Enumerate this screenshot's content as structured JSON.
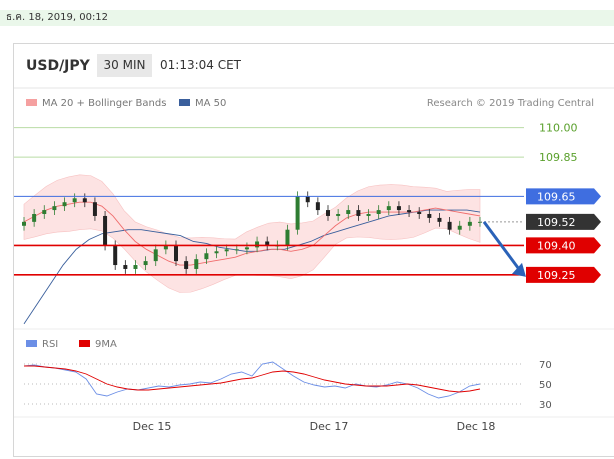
{
  "date_bar": "ธ.ค. 18, 2019, 00:12",
  "header": {
    "symbol": "USD/JPY",
    "timeframe": "30 MIN",
    "time": "01:13:04 CET"
  },
  "legend": {
    "ma20": "MA 20 + Bollinger Bands",
    "ma50": "MA 50",
    "source": "Research © 2019 Trading Central"
  },
  "rsi_legend": {
    "rsi": "RSI",
    "ma": "9MA"
  },
  "colors": {
    "up": "#2e7d32",
    "down": "#222222",
    "ma20": "#f06d6d",
    "ma50": "#3a5f9c",
    "band": "#fde3e3",
    "resistance": "#3f6ee0",
    "support": "#e00000",
    "target": "#5aa02c",
    "arrow": "#2a62b8"
  },
  "chart_data": [
    {
      "type": "line",
      "title": "",
      "ylim": [
        109.02,
        110.1
      ],
      "x_ticks": [
        "Dec 15",
        "Dec 17",
        "Dec 18"
      ],
      "levels": [
        {
          "value": 110.0,
          "label": "110.00",
          "kind": "target"
        },
        {
          "value": 109.85,
          "label": "109.85",
          "kind": "target"
        },
        {
          "value": 109.65,
          "label": "109.65",
          "kind": "resistance"
        },
        {
          "value": 109.52,
          "label": "109.52",
          "kind": "current"
        },
        {
          "value": 109.4,
          "label": "109.40",
          "kind": "support"
        },
        {
          "value": 109.25,
          "label": "109.25",
          "kind": "support"
        }
      ],
      "series": [
        {
          "name": "MA 20 + Bollinger Bands",
          "values": [
            109.52,
            109.55,
            109.58,
            109.6,
            109.61,
            109.62,
            109.62,
            109.6,
            109.55,
            109.48,
            109.42,
            109.38,
            109.35,
            109.32,
            109.3,
            109.3,
            109.31,
            109.32,
            109.33,
            109.34,
            109.36,
            109.37,
            109.38,
            109.38,
            109.37,
            109.38,
            109.4,
            109.45,
            109.5,
            109.54,
            109.56,
            109.57,
            109.57,
            109.57,
            109.57,
            109.57,
            109.58,
            109.59,
            109.58,
            109.57,
            109.56,
            109.55
          ]
        },
        {
          "name": "MA 50",
          "values": [
            109.0,
            109.1,
            109.2,
            109.3,
            109.38,
            109.43,
            109.46,
            109.47,
            109.48,
            109.48,
            109.47,
            109.46,
            109.45,
            109.42,
            109.41,
            109.39,
            109.38,
            109.37,
            109.37,
            109.38,
            109.38,
            109.4,
            109.42,
            109.45,
            109.47,
            109.49,
            109.51,
            109.53,
            109.55,
            109.56,
            109.57,
            109.58,
            109.58,
            109.58,
            109.58,
            109.57
          ]
        },
        {
          "name": "Price",
          "values": [
            109.52,
            109.56,
            109.58,
            109.6,
            109.62,
            109.64,
            109.62,
            109.55,
            109.4,
            109.3,
            109.28,
            109.3,
            109.32,
            109.38,
            109.4,
            109.32,
            109.28,
            109.33,
            109.36,
            109.37,
            109.38,
            109.38,
            109.39,
            109.42,
            109.4,
            109.4,
            109.48,
            109.65,
            109.62,
            109.58,
            109.55,
            109.56,
            109.58,
            109.55,
            109.56,
            109.58,
            109.6,
            109.58,
            109.57,
            109.56,
            109.54,
            109.52,
            109.48,
            109.5,
            109.52,
            109.52
          ]
        }
      ]
    },
    {
      "type": "line",
      "title": "",
      "ylim": [
        20,
        80
      ],
      "y_ticks": [
        70,
        50,
        30
      ],
      "series": [
        {
          "name": "RSI",
          "values": [
            68,
            69,
            67,
            66,
            64,
            62,
            55,
            40,
            38,
            42,
            45,
            44,
            46,
            48,
            47,
            49,
            50,
            52,
            51,
            55,
            60,
            62,
            58,
            70,
            72,
            65,
            58,
            52,
            49,
            47,
            48,
            46,
            50,
            48,
            47,
            49,
            52,
            50,
            46,
            40,
            36,
            38,
            42,
            48,
            50
          ]
        },
        {
          "name": "9MA",
          "values": [
            68,
            68,
            67,
            66,
            65,
            63,
            60,
            55,
            50,
            47,
            45,
            44,
            44,
            45,
            46,
            47,
            48,
            49,
            50,
            51,
            53,
            55,
            56,
            59,
            62,
            63,
            62,
            60,
            57,
            54,
            52,
            50,
            49,
            48,
            48,
            48,
            49,
            50,
            49,
            47,
            45,
            43,
            42,
            43,
            45
          ]
        }
      ]
    }
  ]
}
